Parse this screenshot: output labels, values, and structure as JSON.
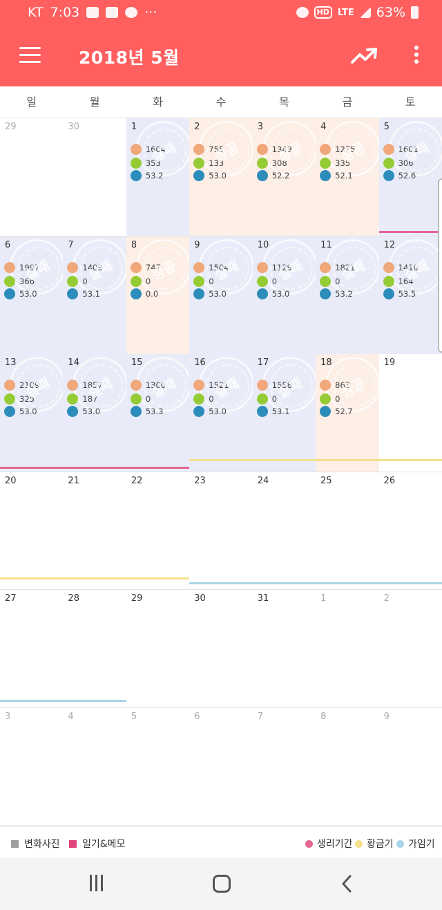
{
  "status_bar": {
    "carrier": "KT",
    "time": "7:03",
    "network": "LTE",
    "hd_badge": "HD",
    "battery": "63%"
  },
  "app_bar": {
    "title": "2018년 5월"
  },
  "weekdays": [
    "일",
    "월",
    "화",
    "수",
    "목",
    "금",
    "토"
  ],
  "stamps": {
    "fail": "실패",
    "success": "성공"
  },
  "colors": {
    "app_bar": "#ff5f5f",
    "fail_day_bg": "#e9ecf8",
    "success_day_bg": "#fdeee6",
    "food_icon": "#f0a77a",
    "exercise_icon": "#95cc36",
    "weight_icon": "#2c8cba",
    "period": "#e36592",
    "fertile": "#f3e08a",
    "ovulation": "#a9d3e8"
  },
  "weeks": [
    [
      {
        "d": "29",
        "other": true
      },
      {
        "d": "30",
        "other": true
      },
      {
        "d": "1",
        "status": "fail",
        "food": "1604",
        "exercise": "353",
        "weight": "53.2"
      },
      {
        "d": "2",
        "status": "success",
        "food": "755",
        "exercise": "133",
        "weight": "53.0"
      },
      {
        "d": "3",
        "status": "success",
        "food": "1343",
        "exercise": "308",
        "weight": "52.2"
      },
      {
        "d": "4",
        "status": "success",
        "food": "1275",
        "exercise": "335",
        "weight": "52.1"
      },
      {
        "d": "5",
        "status": "fail",
        "food": "1601",
        "exercise": "306",
        "weight": "52.6"
      }
    ],
    [
      {
        "d": "6",
        "status": "fail",
        "food": "1997",
        "exercise": "366",
        "weight": "53.0"
      },
      {
        "d": "7",
        "status": "fail",
        "food": "1403",
        "exercise": "0",
        "weight": "53.1"
      },
      {
        "d": "8",
        "status": "success",
        "food": "747",
        "exercise": "0",
        "weight": "0.0"
      },
      {
        "d": "9",
        "status": "fail",
        "food": "1504",
        "exercise": "0",
        "weight": "53.0"
      },
      {
        "d": "10",
        "status": "fail",
        "food": "1129",
        "exercise": "0",
        "weight": "53.0"
      },
      {
        "d": "11",
        "status": "fail",
        "food": "1821",
        "exercise": "0",
        "weight": "53.2"
      },
      {
        "d": "12",
        "status": "fail",
        "food": "1410",
        "exercise": "164",
        "weight": "53.5"
      }
    ],
    [
      {
        "d": "13",
        "status": "fail",
        "food": "2109",
        "exercise": "325",
        "weight": "53.0"
      },
      {
        "d": "14",
        "status": "fail",
        "food": "1857",
        "exercise": "187",
        "weight": "53.0"
      },
      {
        "d": "15",
        "status": "fail",
        "food": "1300",
        "exercise": "0",
        "weight": "53.3"
      },
      {
        "d": "16",
        "status": "fail",
        "food": "1521",
        "exercise": "0",
        "weight": "53.0"
      },
      {
        "d": "17",
        "status": "fail",
        "food": "1558",
        "exercise": "0",
        "weight": "53.1"
      },
      {
        "d": "18",
        "status": "success",
        "food": "863",
        "exercise": "0",
        "weight": "52.7"
      },
      {
        "d": "19"
      }
    ],
    [
      {
        "d": "20"
      },
      {
        "d": "21"
      },
      {
        "d": "22"
      },
      {
        "d": "23"
      },
      {
        "d": "24"
      },
      {
        "d": "25"
      },
      {
        "d": "26"
      }
    ],
    [
      {
        "d": "27"
      },
      {
        "d": "28"
      },
      {
        "d": "29"
      },
      {
        "d": "30"
      },
      {
        "d": "31"
      },
      {
        "d": "1",
        "other": true
      },
      {
        "d": "2",
        "other": true
      }
    ],
    [
      {
        "d": "3",
        "other": true
      },
      {
        "d": "4",
        "other": true
      },
      {
        "d": "5",
        "other": true
      },
      {
        "d": "6",
        "other": true
      },
      {
        "d": "7",
        "other": true
      },
      {
        "d": "8",
        "other": true
      },
      {
        "d": "9",
        "other": true
      }
    ]
  ],
  "marker_lines": [
    {
      "week": 0,
      "from": 6,
      "to": 7,
      "type": "period"
    },
    {
      "week": 2,
      "from": 0,
      "to": 3,
      "type": "period"
    },
    {
      "week": 2,
      "from": 3,
      "to": 7,
      "type": "fertile"
    },
    {
      "week": 3,
      "from": 0,
      "to": 3,
      "type": "fertile"
    },
    {
      "week": 3,
      "from": 3,
      "to": 7,
      "type": "ovulation"
    },
    {
      "week": 4,
      "from": 0,
      "to": 2,
      "type": "ovulation"
    }
  ],
  "legend": {
    "photo": "변화사진",
    "memo": "일기&메모",
    "period": "생리기간",
    "fertile": "황금기",
    "ovulation": "가임기"
  }
}
